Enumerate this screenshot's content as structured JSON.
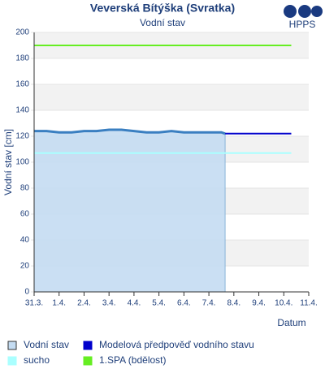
{
  "chart_data": {
    "type": "line",
    "title": "Veverská Bítýška (Svratka)",
    "subtitle": "Vodní stav",
    "logo": "HPPS",
    "y_label": "Vodní stav [cm]",
    "x_label": "Datum",
    "xlim": [
      0,
      11
    ],
    "xticks": [
      {
        "value": 0,
        "label": "31.3."
      },
      {
        "value": 1,
        "label": "1.4."
      },
      {
        "value": 2,
        "label": "2.4."
      },
      {
        "value": 3,
        "label": "3.4."
      },
      {
        "value": 4,
        "label": "4.4."
      },
      {
        "value": 5,
        "label": "5.4."
      },
      {
        "value": 6,
        "label": "6.4."
      },
      {
        "value": 7,
        "label": "7.4."
      },
      {
        "value": 8,
        "label": "8.4."
      },
      {
        "value": 9,
        "label": "9.4."
      },
      {
        "value": 10,
        "label": "10.4."
      },
      {
        "value": 11,
        "label": "11.4."
      }
    ],
    "ylim": [
      0,
      200
    ],
    "yticks": [
      0,
      20,
      40,
      60,
      80,
      100,
      120,
      140,
      160,
      180,
      200
    ],
    "grid": "bands",
    "series": [
      {
        "name": "Vodní stav",
        "color": "#3a7fc1",
        "fill": "#c4dcf2",
        "x": [
          0,
          0.5,
          1,
          1.5,
          2,
          2.5,
          3,
          3.5,
          4,
          4.5,
          5,
          5.5,
          6,
          6.5,
          7,
          7.5,
          7.65
        ],
        "values": [
          124,
          124,
          123,
          123,
          124,
          124,
          125,
          125,
          124,
          123,
          123,
          124,
          123,
          123,
          123,
          123,
          122
        ]
      },
      {
        "name": "Modelová předpověď vodního stavu",
        "color": "#0000cc",
        "x": [
          7.65,
          10.3
        ],
        "values": [
          122,
          122
        ]
      },
      {
        "name": "sucho",
        "color": "#aaffff",
        "x": [
          0,
          10.3
        ],
        "values": [
          107,
          107
        ]
      },
      {
        "name": "1.SPA (bdělost)",
        "color": "#66ee22",
        "x": [
          0,
          10.3
        ],
        "values": [
          190,
          190
        ]
      }
    ]
  }
}
